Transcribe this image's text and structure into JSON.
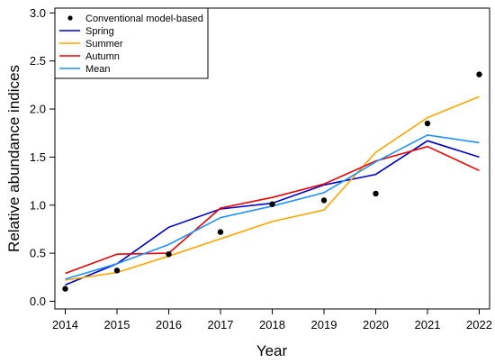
{
  "chart_data": {
    "type": "line",
    "xlabel": "Year",
    "ylabel": "Relative abundance indices",
    "x": [
      2014,
      2015,
      2016,
      2017,
      2018,
      2019,
      2020,
      2021,
      2022
    ],
    "x_tick_labels": [
      "2014",
      "2015",
      "2016",
      "2017",
      "2018",
      "2019",
      "2020",
      "2021",
      "2022"
    ],
    "xlim": [
      2013.8,
      2022.2
    ],
    "ylim": [
      -0.08,
      3.05
    ],
    "y_ticks": [
      0.0,
      0.5,
      1.0,
      1.5,
      2.0,
      2.5,
      3.0
    ],
    "y_tick_labels": [
      "0.0",
      "0.5",
      "1.0",
      "1.5",
      "2.0",
      "2.5",
      "3.0"
    ],
    "grid": false,
    "legend_position": "top-left",
    "points": {
      "name": "Conventional model-based",
      "color": "#000000",
      "values": [
        0.13,
        0.32,
        0.49,
        0.72,
        1.01,
        1.05,
        1.12,
        1.85,
        2.36
      ]
    },
    "series": [
      {
        "name": "Spring",
        "color": "#0000cc",
        "values": [
          0.17,
          0.39,
          0.77,
          0.96,
          1.02,
          1.21,
          1.32,
          1.67,
          1.5
        ]
      },
      {
        "name": "Summer",
        "color": "#ffa500",
        "values": [
          0.22,
          0.3,
          0.47,
          0.65,
          0.83,
          0.95,
          1.55,
          1.91,
          2.13
        ]
      },
      {
        "name": "Autumn",
        "color": "#ee0000",
        "values": [
          0.29,
          0.49,
          0.5,
          0.97,
          1.08,
          1.22,
          1.46,
          1.61,
          1.36
        ]
      },
      {
        "name": "Mean",
        "color": "#1e90ff",
        "values": [
          0.23,
          0.39,
          0.59,
          0.87,
          0.99,
          1.13,
          1.45,
          1.73,
          1.65
        ]
      }
    ]
  }
}
